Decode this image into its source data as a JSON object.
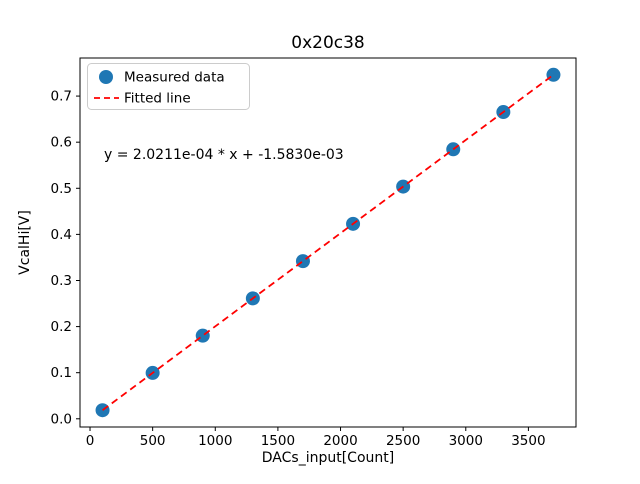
{
  "chart_data": {
    "type": "scatter",
    "title": "0x20c38",
    "xlabel": "DACs_input[Count]",
    "ylabel": "VcalHi[V]",
    "annotation": "y = 2.0211e-04 * x + -1.5830e-03",
    "xlim": [
      -80,
      3880
    ],
    "ylim": [
      -0.0178,
      0.7826
    ],
    "xticks": [
      0,
      500,
      1000,
      1500,
      2000,
      2500,
      3000,
      3500
    ],
    "yticks": [
      0.0,
      0.1,
      0.2,
      0.3,
      0.4,
      0.5,
      0.6,
      0.7
    ],
    "grid": false,
    "legend_position": "upper left",
    "series": [
      {
        "name": "Measured data",
        "type": "scatter",
        "color": "#1f77b4",
        "x": [
          100,
          500,
          900,
          1300,
          1700,
          2100,
          2500,
          2900,
          3300,
          3700
        ],
        "y": [
          0.0186,
          0.0995,
          0.1803,
          0.2612,
          0.342,
          0.4229,
          0.5037,
          0.5846,
          0.6654,
          0.7462
        ]
      },
      {
        "name": "Fitted line",
        "type": "line",
        "style": "dashed",
        "color": "#ff0000",
        "slope": 0.00020211,
        "intercept": -0.001583,
        "x_range": [
          100,
          3700
        ]
      }
    ]
  }
}
